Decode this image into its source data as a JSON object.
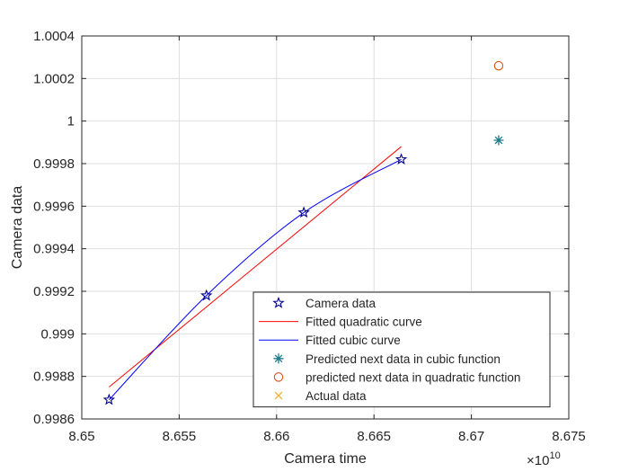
{
  "chart_data": {
    "type": "line",
    "title": "",
    "xlabel": "Camera time",
    "ylabel": "Camera data",
    "x_exponent_label": "10",
    "x_exponent_power": "10",
    "xlim": [
      8.65,
      8.675
    ],
    "ylim": [
      0.9986,
      1.0004
    ],
    "x_ticks": [
      8.65,
      8.655,
      8.66,
      8.665,
      8.67,
      8.675
    ],
    "x_tick_labels": [
      "8.65",
      "8.655",
      "8.66",
      "8.665",
      "8.67",
      "8.675"
    ],
    "y_ticks": [
      0.9986,
      0.9988,
      0.999,
      0.9992,
      0.9994,
      0.9996,
      0.9998,
      1.0,
      1.0002,
      1.0004
    ],
    "y_tick_labels": [
      "0.9986",
      "0.9988",
      "0.999",
      "0.9992",
      "0.9994",
      "0.9996",
      "0.9998",
      "1",
      "1.0002",
      "1.0004"
    ],
    "grid": true,
    "legend_position": "bottom-right",
    "series": [
      {
        "name": "Camera data",
        "kind": "markers",
        "marker": "star",
        "color": "#00008b",
        "x": [
          8.6514,
          8.6564,
          8.6614,
          8.6664
        ],
        "y": [
          0.99869,
          0.99918,
          0.99957,
          0.99982
        ]
      },
      {
        "name": "Fitted quadratic curve",
        "kind": "line",
        "color": "#ff0000",
        "x": [
          8.6514,
          8.6664
        ],
        "y": [
          0.99875,
          0.99988
        ]
      },
      {
        "name": "Fitted cubic curve",
        "kind": "curve",
        "color": "#0000ff",
        "x": [
          8.6514,
          8.6564,
          8.6614,
          8.6664
        ],
        "y": [
          0.99869,
          0.99918,
          0.99957,
          0.99982
        ]
      },
      {
        "name": "Predicted next  data in cubic function",
        "kind": "markers",
        "marker": "asterisk",
        "color": "#1f7a8c",
        "x": [
          8.6714
        ],
        "y": [
          0.99991
        ]
      },
      {
        "name": "predicted next data in quadratic function",
        "kind": "markers",
        "marker": "circle",
        "color": "#d95319",
        "x": [
          8.6714
        ],
        "y": [
          1.00026
        ]
      },
      {
        "name": "Actual data",
        "kind": "markers",
        "marker": "x",
        "color": "#edb120",
        "x": [],
        "y": []
      }
    ]
  }
}
